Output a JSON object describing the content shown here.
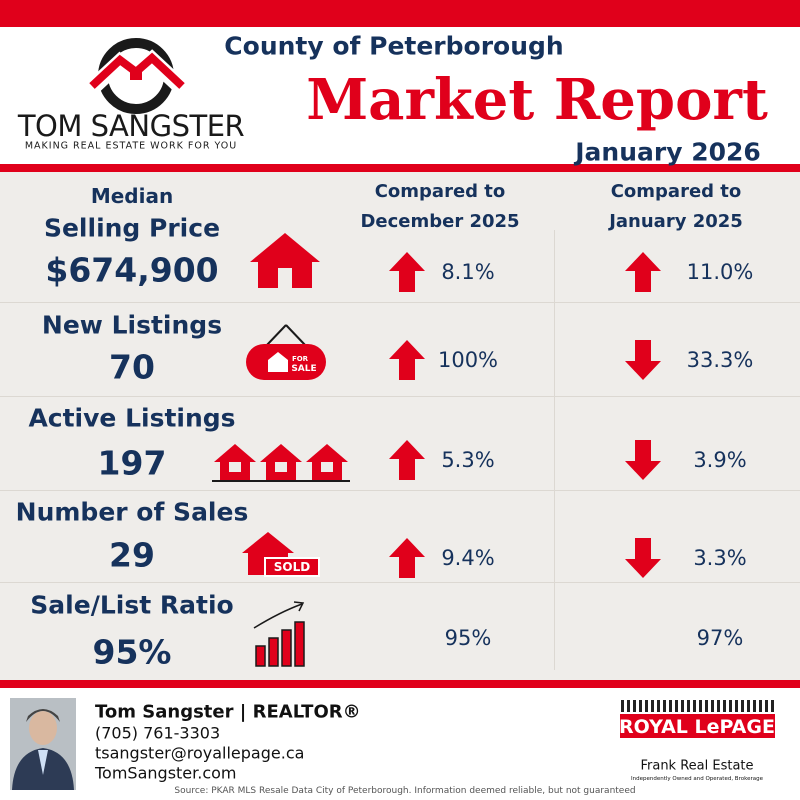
{
  "header": {
    "brand": "TOM SANGSTER",
    "tagline": "MAKING REAL ESTATE WORK FOR YOU",
    "region": "County of Peterborough",
    "title": "Market Report",
    "period": "January 2026"
  },
  "columns": [
    "Compared to December 2025",
    "Compared to January 2025"
  ],
  "metrics": [
    {
      "label_prefix": "Median",
      "label": "Selling Price",
      "value": "$674,900",
      "vs_month": {
        "direction": "up",
        "change": "8.1%"
      },
      "vs_year": {
        "direction": "up",
        "change": "11.0%"
      }
    },
    {
      "label": "New Listings",
      "value": "70",
      "vs_month": {
        "direction": "up",
        "change": "100%"
      },
      "vs_year": {
        "direction": "down",
        "change": "33.3%"
      }
    },
    {
      "label": "Active Listings",
      "value": "197",
      "vs_month": {
        "direction": "up",
        "change": "5.3%"
      },
      "vs_year": {
        "direction": "down",
        "change": "3.9%"
      }
    },
    {
      "label": "Number of Sales",
      "value": "29",
      "vs_month": {
        "direction": "up",
        "change": "9.4%"
      },
      "vs_year": {
        "direction": "down",
        "change": "3.3%"
      }
    },
    {
      "label": "Sale/List Ratio",
      "value": "95%",
      "vs_month": {
        "change": "95%"
      },
      "vs_year": {
        "change": "97%"
      }
    }
  ],
  "icons": {
    "for_sale_small": "FOR",
    "for_sale": "SALE",
    "sold": "SOLD"
  },
  "footer": {
    "name": "Tom Sangster",
    "role": "REALTOR®",
    "phone": "(705) 761-3303",
    "email": "tsangster@royallepage.ca",
    "website": "TomSangster.com",
    "brokerage": "ROYAL LePAGE",
    "office": "Frank Real Estate",
    "office_note": "Independently Owned and Operated, Brokerage",
    "source": "Source: PKAR MLS Resale Data City of Peterborough. Information deemed reliable, but not guaranteed"
  }
}
